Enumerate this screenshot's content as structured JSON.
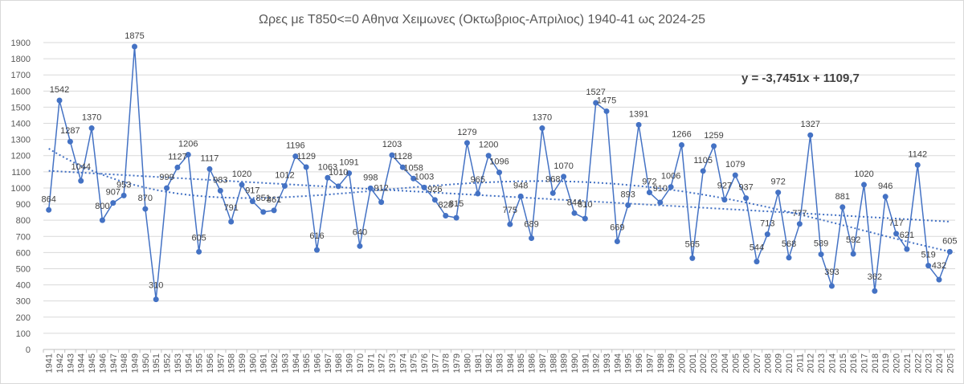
{
  "chart_data": {
    "type": "line",
    "title": "Ωρες με Τ850<=0 Αθηνα Χειμωνες (Οκτωβριος-Απριλιος) 1940-41 ως 2024-25",
    "xlabel": "",
    "ylabel": "",
    "ylim": [
      0,
      1900
    ],
    "y_ticks": [
      0,
      100,
      200,
      300,
      400,
      500,
      600,
      700,
      800,
      900,
      1000,
      1100,
      1200,
      1300,
      1400,
      1500,
      1600,
      1700,
      1800,
      1900
    ],
    "grid": true,
    "legend": "none",
    "color": "#4472c4",
    "trendline_equation": "y = -3,7451x + 1109,7",
    "trendlines": [
      "linear",
      "polynomial"
    ],
    "categories": [
      "1941",
      "1942",
      "1943",
      "1944",
      "1945",
      "1946",
      "1947",
      "1948",
      "1949",
      "1950",
      "1951",
      "1952",
      "1953",
      "1954",
      "1955",
      "1956",
      "1957",
      "1958",
      "1959",
      "1960",
      "1961",
      "1962",
      "1963",
      "1964",
      "1965",
      "1966",
      "1967",
      "1968",
      "1969",
      "1970",
      "1971",
      "1972",
      "1973",
      "1974",
      "1975",
      "1976",
      "1977",
      "1978",
      "1979",
      "1980",
      "1981",
      "1982",
      "1983",
      "1984",
      "1985",
      "1986",
      "1987",
      "1988",
      "1989",
      "1990",
      "1991",
      "1992",
      "1993",
      "1994",
      "1995",
      "1996",
      "1997",
      "1998",
      "1999",
      "2000",
      "2001",
      "2002",
      "2003",
      "2004",
      "2005",
      "2006",
      "2007",
      "2008",
      "2009",
      "2010",
      "2011",
      "2012",
      "2013",
      "2014",
      "2015",
      "2016",
      "2017",
      "2018",
      "2019",
      "2020",
      "2021",
      "2022",
      "2023",
      "2024",
      "2025"
    ],
    "values": [
      864,
      1542,
      1287,
      1044,
      1370,
      800,
      907,
      953,
      1875,
      870,
      310,
      999,
      1127,
      1206,
      605,
      1117,
      983,
      791,
      1020,
      917,
      851,
      861,
      1012,
      1196,
      1129,
      616,
      1063,
      1010,
      1091,
      640,
      998,
      912,
      1203,
      1128,
      1058,
      1003,
      926,
      828,
      815,
      1279,
      965,
      1200,
      1096,
      775,
      948,
      689,
      1370,
      968,
      1070,
      844,
      810,
      1527,
      1475,
      669,
      893,
      1391,
      972,
      910,
      1006,
      1266,
      565,
      1105,
      1259,
      927,
      1079,
      937,
      544,
      713,
      972,
      568,
      777,
      1327,
      589,
      393,
      881,
      592,
      1020,
      362,
      946,
      717,
      621,
      1142,
      519,
      432,
      605
    ]
  }
}
